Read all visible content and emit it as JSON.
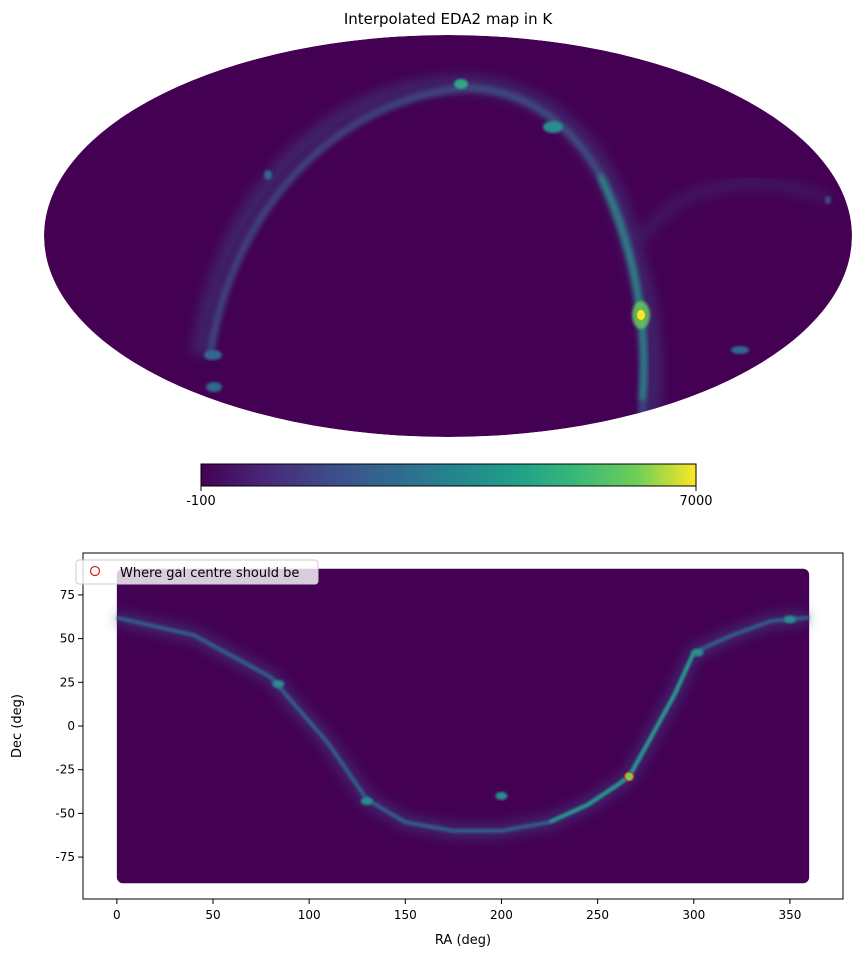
{
  "chart_data": [
    {
      "type": "heatmap",
      "projection": "mollweide",
      "title": "Interpolated EDA2 map in K",
      "colormap": "viridis",
      "colorbar": {
        "min": -100,
        "max": 7000,
        "tick_labels": [
          "-100",
          "7000"
        ],
        "orientation": "horizontal",
        "placement": "bottom"
      },
      "features": [
        {
          "name": "galactic-plane-arc",
          "intensity": 0.3
        },
        {
          "name": "galactic-centre-peak",
          "intensity": 1.0
        },
        {
          "name": "north-knot-a",
          "intensity": 0.5
        },
        {
          "name": "north-knot-b",
          "intensity": 0.4
        }
      ]
    },
    {
      "type": "scatter",
      "xlabel": "RA (deg)",
      "ylabel": "Dec (deg)",
      "xlim": [
        -17.6,
        377.6
      ],
      "ylim": [
        -99,
        99
      ],
      "xticks": [
        0,
        50,
        100,
        150,
        200,
        250,
        300,
        350
      ],
      "yticks": [
        -75,
        -50,
        -25,
        0,
        25,
        50,
        75
      ],
      "colormap": "viridis",
      "background_value_color": "#440154",
      "grid": false,
      "legend": {
        "placement": "upper-left",
        "entries": [
          "Where gal centre should be"
        ]
      },
      "galactic_plane_ridge": {
        "ra": [
          0,
          40,
          80,
          110,
          130,
          150,
          175,
          200,
          225,
          245,
          260,
          266.4,
          275,
          290,
          300,
          320,
          340,
          360
        ],
        "dec": [
          62,
          52,
          28,
          -10,
          -42,
          -55,
          -60,
          -60,
          -55,
          -45,
          -34,
          -28.9,
          -12,
          18,
          42,
          52,
          60,
          62
        ]
      },
      "bright_knots": [
        {
          "ra": 350,
          "dec": 61
        },
        {
          "ra": 302,
          "dec": 42
        },
        {
          "ra": 200,
          "dec": -40
        },
        {
          "ra": 130,
          "dec": -43
        },
        {
          "ra": 84,
          "dec": 24
        }
      ],
      "series": [
        {
          "name": "Where gal centre should be",
          "marker": "open-circle",
          "color": "#d62728",
          "points": [
            {
              "ra": 266.4,
              "dec": -28.9
            }
          ]
        }
      ]
    }
  ]
}
